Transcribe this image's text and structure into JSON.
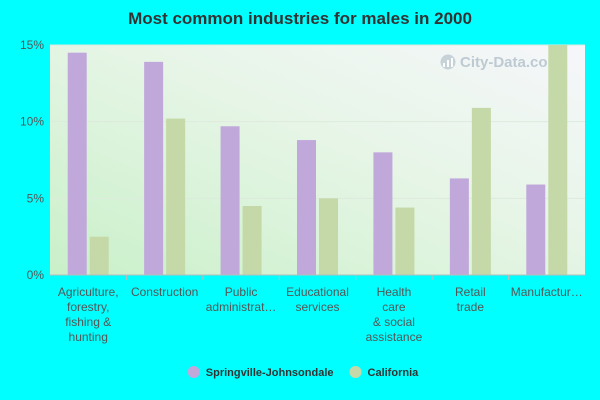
{
  "chart_data": {
    "type": "bar",
    "title": "Most common industries for males in 2000",
    "categories": [
      "Agriculture,\nforestry,\nfishing &\nhunting",
      "Construction",
      "Public\nadministrat…",
      "Educational\nservices",
      "Health\ncare\n& social\nassistance",
      "Retail\ntrade",
      "Manufactur…"
    ],
    "series": [
      {
        "name": "Springville-Johnsondale",
        "color": "#C0A8DB",
        "values": [
          14.5,
          13.9,
          9.7,
          8.8,
          8.0,
          6.3,
          5.9
        ]
      },
      {
        "name": "California",
        "color": "#C5D9A8",
        "values": [
          2.5,
          10.2,
          4.5,
          5.0,
          4.4,
          10.9,
          15.0
        ]
      }
    ],
    "y_ticks": [
      {
        "value": 0,
        "label": "0%"
      },
      {
        "value": 5,
        "label": "5%"
      },
      {
        "value": 10,
        "label": "10%"
      },
      {
        "value": 15,
        "label": "15%"
      }
    ],
    "ylim": [
      0,
      15
    ],
    "grid": true,
    "legend_position": "bottom-center",
    "watermark": "City-Data.com"
  }
}
